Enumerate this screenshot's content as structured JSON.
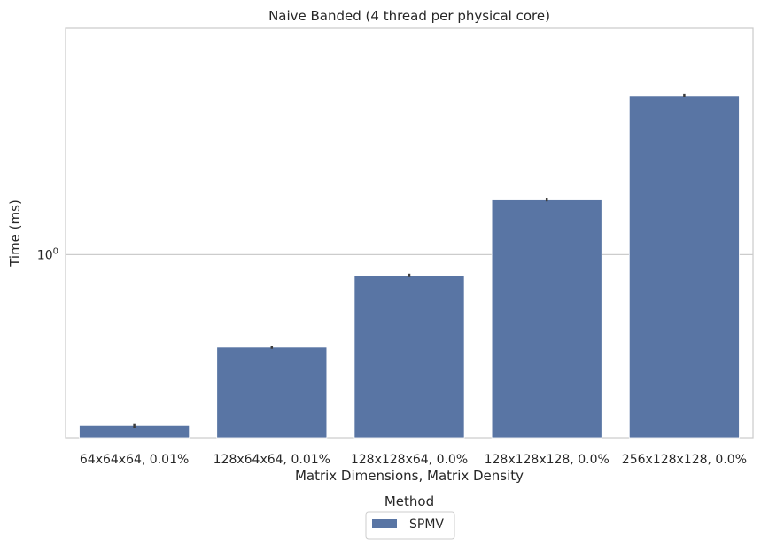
{
  "chart_data": {
    "type": "bar",
    "title": "Naive Banded (4 thread per physical core)",
    "xlabel": "Matrix Dimensions, Matrix Density",
    "ylabel": "Time (ms)",
    "yscale": "log",
    "ylim": [
      0.395,
      3.15
    ],
    "yticks": [
      {
        "value": 1.0,
        "label": "10",
        "exponent": "0"
      }
    ],
    "grid": "horizontal",
    "categories": [
      "64x64x64, 0.01%",
      "128x64x64, 0.01%",
      "128x128x64, 0.0%",
      "128x128x128, 0.0%",
      "256x128x128, 0.0%"
    ],
    "series": [
      {
        "name": "SPMV",
        "color": "#5975a4",
        "values": [
          0.42,
          0.625,
          0.9,
          1.32,
          2.24
        ],
        "errors": [
          0.005,
          0.005,
          0.008,
          0.01,
          0.02
        ]
      }
    ],
    "legend": {
      "title": "Method",
      "placement": "bottom-center",
      "entries": [
        "SPMV"
      ]
    }
  }
}
